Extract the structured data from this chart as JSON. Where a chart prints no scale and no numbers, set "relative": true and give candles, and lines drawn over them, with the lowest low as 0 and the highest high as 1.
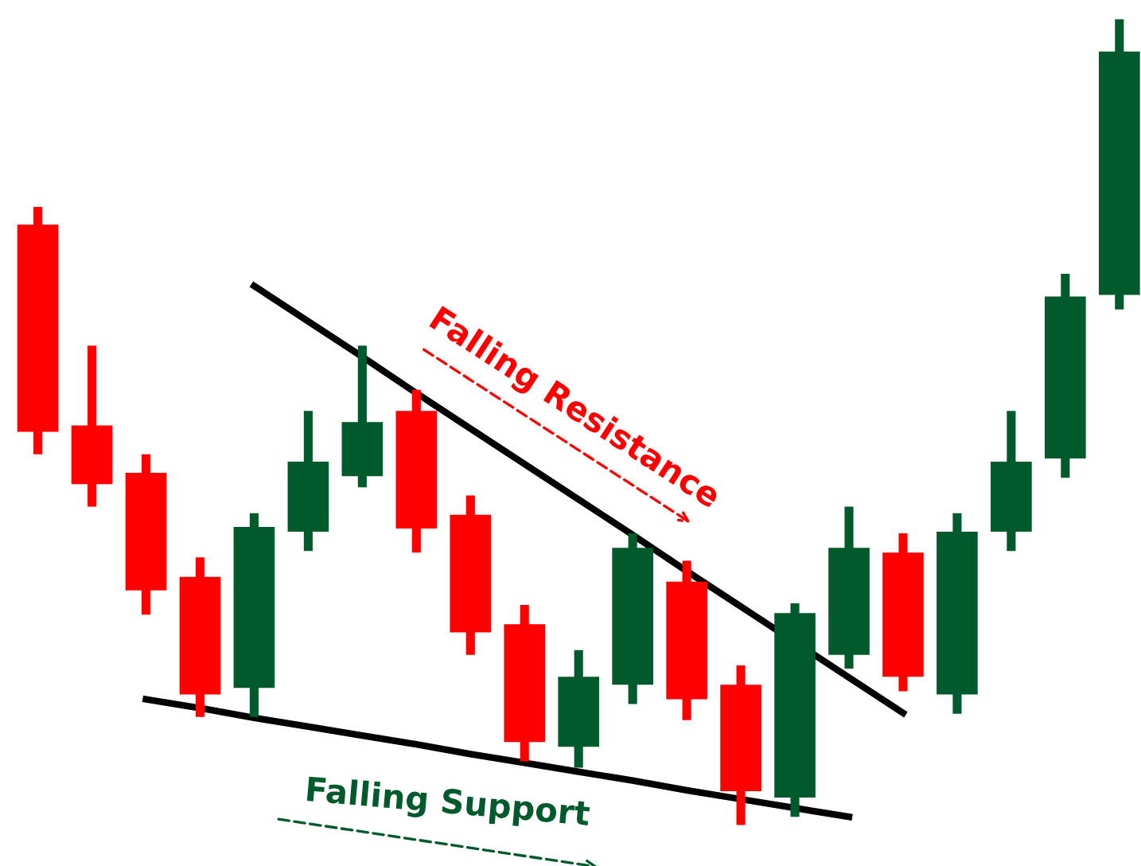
{
  "chart_data": {
    "type": "candlestick",
    "relative": true,
    "categories": [
      null,
      null,
      null,
      null,
      null,
      null,
      null,
      null,
      null,
      null,
      null,
      null,
      null,
      null,
      null,
      null,
      null,
      null,
      null,
      null,
      null
    ],
    "ohlc": [
      [
        0.745,
        0.767,
        0.46,
        0.488
      ],
      [
        0.496,
        0.595,
        0.395,
        0.423
      ],
      [
        0.437,
        0.46,
        0.261,
        0.291
      ],
      [
        0.308,
        0.332,
        0.134,
        0.162
      ],
      [
        0.17,
        0.387,
        0.134,
        0.37
      ],
      [
        0.364,
        0.514,
        0.34,
        0.451
      ],
      [
        0.433,
        0.595,
        0.419,
        0.5
      ],
      [
        0.514,
        0.54,
        0.338,
        0.368
      ],
      [
        0.385,
        0.409,
        0.211,
        0.239
      ],
      [
        0.249,
        0.273,
        0.079,
        0.103
      ],
      [
        0.097,
        0.217,
        0.071,
        0.184
      ],
      [
        0.174,
        0.362,
        0.15,
        0.344
      ],
      [
        0.302,
        0.328,
        0.13,
        0.156
      ],
      [
        0.174,
        0.198,
        0.0,
        0.042
      ],
      [
        0.034,
        0.275,
        0.01,
        0.263
      ],
      [
        0.211,
        0.395,
        0.194,
        0.344
      ],
      [
        0.338,
        0.362,
        0.166,
        0.184
      ],
      [
        0.162,
        0.387,
        0.138,
        0.364
      ],
      [
        0.364,
        0.514,
        0.34,
        0.451
      ],
      [
        0.455,
        0.684,
        0.431,
        0.656
      ],
      [
        0.658,
        1.0,
        0.64,
        0.96
      ]
    ],
    "colors": [
      "#ff0000",
      "#ff0000",
      "#ff0000",
      "#ff0000",
      "#005a2b",
      "#005a2b",
      "#005a2b",
      "#ff0000",
      "#ff0000",
      "#ff0000",
      "#005a2b",
      "#005a2b",
      "#ff0000",
      "#ff0000",
      "#005a2b",
      "#005a2b",
      "#ff0000",
      "#005a2b",
      "#005a2b",
      "#005a2b",
      "#005a2b"
    ],
    "series": [
      {
        "type": "line",
        "color": "#000000",
        "values": [
          null,
          null,
          null,
          null,
          0.669,
          0.625,
          0.581,
          0.536,
          0.492,
          0.448,
          0.404,
          0.36,
          0.315,
          0.271,
          null,
          0.183,
          0.139,
          null,
          null,
          null,
          null
        ]
      },
      {
        "type": "line",
        "color": "#000000",
        "values": [
          null,
          null,
          0.156,
          0.145,
          0.133,
          0.122,
          0.111,
          0.1,
          0.088,
          0.077,
          0.066,
          0.055,
          0.043,
          0.032,
          0.021,
          0.01,
          null,
          null,
          null,
          null,
          null
        ]
      }
    ],
    "annotations": [
      "Falling Resistance",
      "Falling Support"
    ]
  }
}
